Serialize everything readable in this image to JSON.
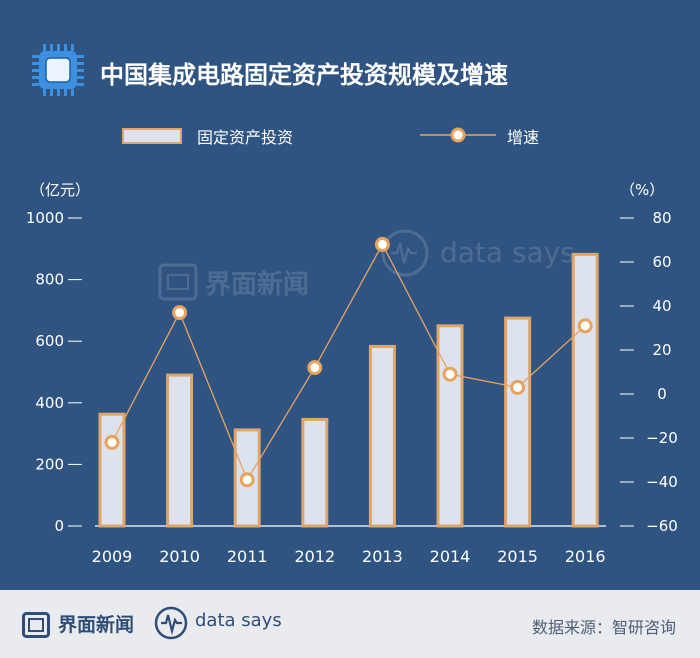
{
  "header": {
    "title": "中国集成电路固定资产投资规模及增速",
    "icon": "chip-icon"
  },
  "legend": {
    "bar_label": "固定资产投资",
    "line_label": "增速"
  },
  "watermark": {
    "brand": "界面新闻",
    "tagline": "data says"
  },
  "footer": {
    "brand": "界面新闻",
    "tagline": "data says",
    "source": "数据来源：智研咨询"
  },
  "colors": {
    "background": "#2f5482",
    "bar_fill": "#dde3ec",
    "bar_border": "#e1a56a",
    "line": "#e8a35f",
    "marker_fill": "#ffffff",
    "text": "#ffffff",
    "footer_bg": "#e9ebee"
  },
  "chart_data": {
    "type": "bar",
    "title": "中国集成电路固定资产投资规模及增速",
    "categories": [
      "2009",
      "2010",
      "2011",
      "2012",
      "2013",
      "2014",
      "2015",
      "2016"
    ],
    "series": [
      {
        "name": "固定资产投资",
        "type": "bar",
        "axis": "left",
        "values": [
          363,
          490,
          312,
          346,
          583,
          650,
          675,
          882
        ]
      },
      {
        "name": "增速",
        "type": "line",
        "axis": "right",
        "values": [
          -22,
          37,
          -39,
          12,
          68,
          9,
          3,
          31
        ]
      }
    ],
    "y_left": {
      "label": "（亿元）",
      "min": 0,
      "max": 1000,
      "ticks": [
        0,
        200,
        400,
        600,
        800,
        1000
      ]
    },
    "y_right": {
      "label": "（%）",
      "min": -60,
      "max": 80,
      "ticks": [
        -60,
        -40,
        -20,
        0,
        20,
        40,
        60,
        80
      ]
    },
    "grid": false,
    "legend_position": "top"
  }
}
